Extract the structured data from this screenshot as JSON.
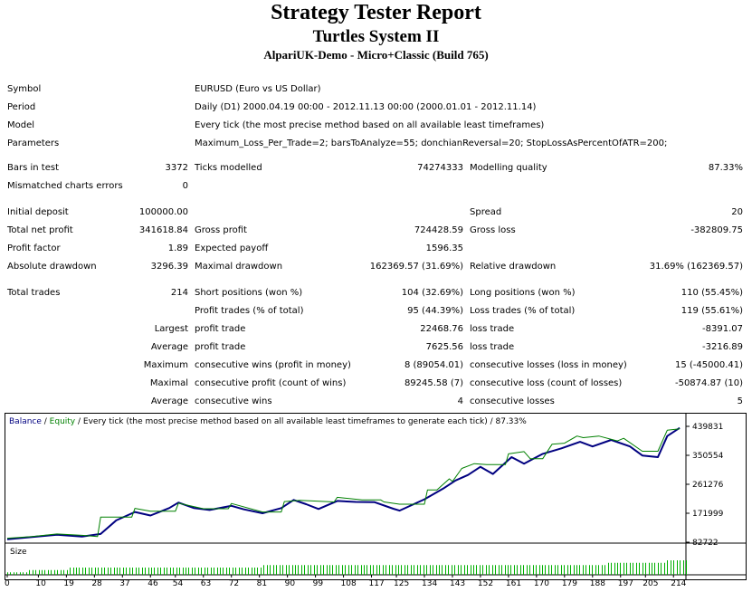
{
  "report": {
    "title": "Strategy Tester Report",
    "expert": "Turtles System II",
    "server": "AlpariUK-Demo - Micro+Classic (Build 765)"
  },
  "info": {
    "symbol_label": "Symbol",
    "symbol": "EURUSD (Euro vs US Dollar)",
    "period_label": "Period",
    "period": "Daily (D1) 2000.04.19 00:00 - 2012.11.13 00:00 (2000.01.01 - 2012.11.14)",
    "model_label": "Model",
    "model": "Every tick (the most precise method based on all available least timeframes)",
    "parameters_label": "Parameters",
    "parameters": "Maximum_Loss_Per_Trade=2; barsToAnalyze=55; donchianReversal=20; StopLossAsPercentOfATR=200;"
  },
  "stats": {
    "bars_label": "Bars in test",
    "bars": "3372",
    "ticks_label": "Ticks modelled",
    "ticks": "74274333",
    "quality_label": "Modelling quality",
    "quality": "87.33%",
    "mismatch_label": "Mismatched charts errors",
    "mismatch": "0",
    "deposit_label": "Initial deposit",
    "deposit": "100000.00",
    "spread_label": "Spread",
    "spread": "20",
    "net_label": "Total net profit",
    "net": "341618.84",
    "gross_profit_label": "Gross profit",
    "gross_profit": "724428.59",
    "gross_loss_label": "Gross loss",
    "gross_loss": "-382809.75",
    "pf_label": "Profit factor",
    "pf": "1.89",
    "ep_label": "Expected payoff",
    "ep": "1596.35",
    "abs_dd_label": "Absolute drawdown",
    "abs_dd": "3296.39",
    "max_dd_label": "Maximal drawdown",
    "max_dd": "162369.57 (31.69%)",
    "rel_dd_label": "Relative drawdown",
    "rel_dd": "31.69% (162369.57)",
    "trades_label": "Total trades",
    "trades": "214",
    "short_label": "Short positions (won %)",
    "short": "104 (32.69%)",
    "long_label": "Long positions (won %)",
    "long": "110 (55.45%)",
    "pt_label": "Profit trades (% of total)",
    "pt": "95 (44.39%)",
    "lt_label": "Loss trades (% of total)",
    "lt": "119 (55.61%)",
    "largest": "Largest",
    "lpt_label": "profit trade",
    "lpt": "22468.76",
    "llt_label": "loss trade",
    "llt": "-8391.07",
    "average": "Average",
    "apt_label": "profit trade",
    "apt": "7625.56",
    "alt_label": "loss trade",
    "alt": "-3216.89",
    "maximum": "Maximum",
    "mcw_label": "consecutive wins (profit in money)",
    "mcw": "8 (89054.01)",
    "mcl_label": "consecutive losses (loss in money)",
    "mcl": "15 (-45000.41)",
    "maximal": "Maximal",
    "mcp_label": "consecutive profit (count of wins)",
    "mcp": "89245.58 (7)",
    "mclo_label": "consecutive loss (count of losses)",
    "mclo": "-50874.87 (10)",
    "average2": "Average",
    "acw_label": "consecutive wins",
    "acw": "4",
    "acl_label": "consecutive losses",
    "acl": "5"
  },
  "chart_header": {
    "balance": "Balance",
    "sep": " / ",
    "equity": "Equity",
    "rest": " / Every tick (the most precise method based on all available least timeframes to generate each tick) / 87.33%",
    "size_label": "Size"
  },
  "chart_data": {
    "type": "line",
    "series": [
      {
        "name": "Balance",
        "color": "#008000",
        "x": [
          0,
          8,
          16,
          24,
          29,
          30,
          40,
          41,
          46,
          54,
          55,
          63,
          71,
          72,
          82,
          88,
          89,
          94,
          105,
          106,
          114,
          120,
          121,
          126,
          134,
          135,
          138,
          142,
          143,
          146,
          150,
          154,
          160,
          161,
          166,
          168,
          172,
          175,
          179,
          183,
          185,
          190,
          196,
          198,
          204,
          209,
          212,
          216
        ],
        "y": [
          95000,
          100000,
          108000,
          104000,
          100000,
          160000,
          160000,
          187000,
          178000,
          178000,
          203000,
          186000,
          186000,
          202000,
          176000,
          176000,
          208000,
          212000,
          207000,
          221000,
          213000,
          213000,
          207000,
          200000,
          200000,
          244000,
          244000,
          278000,
          270000,
          310000,
          325000,
          322000,
          322000,
          355000,
          362000,
          340000,
          340000,
          385000,
          388000,
          410000,
          405000,
          410000,
          395000,
          403000,
          363000,
          363000,
          428000,
          432000
        ]
      },
      {
        "name": "Equity",
        "color": "#000080",
        "x": [
          0,
          8,
          16,
          24,
          30,
          35,
          41,
          46,
          52,
          55,
          60,
          65,
          72,
          76,
          82,
          88,
          92,
          96,
          100,
          106,
          112,
          118,
          124,
          126,
          134,
          140,
          144,
          148,
          152,
          156,
          162,
          166,
          172,
          178,
          184,
          188,
          194,
          200,
          204,
          209,
          212,
          216
        ],
        "y": [
          92000,
          99000,
          106000,
          100000,
          108000,
          150000,
          176000,
          165000,
          188000,
          205000,
          188000,
          182000,
          195000,
          184000,
          172000,
          188000,
          213000,
          200000,
          185000,
          210000,
          207000,
          206000,
          186000,
          180000,
          215000,
          248000,
          273000,
          290000,
          315000,
          293000,
          345000,
          325000,
          355000,
          372000,
          392000,
          378000,
          398000,
          378000,
          350000,
          345000,
          410000,
          435000
        ]
      }
    ],
    "size_values": [
      1,
      1,
      1,
      1,
      1,
      1,
      1,
      2,
      2,
      2,
      2,
      2,
      2,
      2,
      2,
      2,
      2,
      2,
      2,
      2,
      3,
      3,
      3,
      3,
      3,
      3,
      3,
      3,
      3,
      3,
      3,
      3,
      3,
      3,
      3,
      3,
      3,
      3,
      3,
      3,
      3,
      3,
      3,
      3,
      3,
      3,
      3,
      3,
      3,
      3,
      3,
      3,
      3,
      3,
      3,
      3,
      3,
      3,
      3,
      3,
      3,
      3,
      3,
      3,
      3,
      3,
      3,
      3,
      3,
      3,
      3,
      3,
      3,
      3,
      3,
      3,
      3,
      3,
      3,
      3,
      3,
      3,
      4,
      4,
      4,
      4,
      4,
      4,
      4,
      4,
      4,
      4,
      4,
      4,
      4,
      4,
      4,
      4,
      4,
      4,
      4,
      4,
      4,
      4,
      4,
      4,
      4,
      4,
      4,
      4,
      4,
      4,
      4,
      4,
      4,
      4,
      4,
      4,
      4,
      4,
      4,
      4,
      4,
      4,
      4,
      4,
      4,
      4,
      4,
      4,
      4,
      4,
      4,
      4,
      4,
      4,
      4,
      4,
      4,
      4,
      4,
      4,
      4,
      4,
      4,
      4,
      4,
      4,
      4,
      4,
      4,
      4,
      4,
      4,
      4,
      4,
      4,
      4,
      4,
      4,
      4,
      4,
      4,
      4,
      4,
      4,
      4,
      4,
      4,
      4,
      4,
      4,
      4,
      4,
      4,
      4,
      4,
      4,
      4,
      4,
      4,
      4,
      4,
      4,
      4,
      4,
      4,
      4,
      4,
      4,
      4,
      4,
      5,
      5,
      5,
      5,
      5,
      5,
      5,
      5,
      5,
      5,
      5,
      5,
      5,
      5,
      5,
      5,
      5,
      5,
      5,
      6,
      6,
      6,
      6,
      6,
      6,
      6
    ],
    "y_ticks": [
      "439831",
      "350554",
      "261276",
      "171999",
      "82722"
    ],
    "x_ticks": [
      "0",
      "10",
      "19",
      "28",
      "37",
      "46",
      "54",
      "63",
      "72",
      "81",
      "90",
      "99",
      "108",
      "117",
      "125",
      "134",
      "143",
      "152",
      "161",
      "170",
      "179",
      "188",
      "197",
      "205",
      "214"
    ],
    "ylim": [
      82722,
      439831
    ],
    "xlim": [
      0,
      218
    ]
  }
}
